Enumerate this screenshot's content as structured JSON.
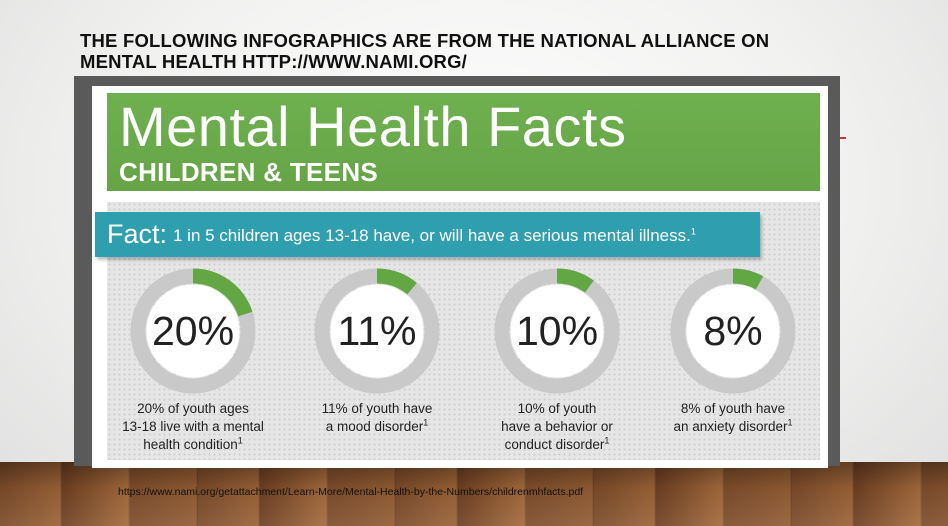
{
  "slide": {
    "heading_line1": "THE FOLLOWING INFOGRAPHICS ARE FROM THE NATIONAL ALLIANCE ON",
    "heading_line2": "MENTAL HEALTH  HTTP://WWW.NAMI.ORG/",
    "source_url": "https://www.nami.org/getattachment/Learn-More/Mental-Health-by-the-Numbers/childrenmhfacts.pdf"
  },
  "infographic": {
    "title": "Mental Health Facts",
    "subtitle": "CHILDREN & TEENS",
    "fact_label": "Fact:",
    "fact_text": "1 in 5 children ages 13-18 have, or will have a serious mental illness.",
    "fact_footnote": "1",
    "stats": [
      {
        "value_label": "20%",
        "fraction": 0.2,
        "line1": "20% of youth ages",
        "line2": "13-18 live with a mental",
        "line3": "health condition",
        "footnote": "1"
      },
      {
        "value_label": "11%",
        "fraction": 0.11,
        "line1": "11% of youth have",
        "line2": "a mood disorder",
        "line3": "",
        "footnote": "1"
      },
      {
        "value_label": "10%",
        "fraction": 0.1,
        "line1": "10% of youth",
        "line2": "have a behavior or",
        "line3": "conduct disorder",
        "footnote": "1"
      },
      {
        "value_label": "8%",
        "fraction": 0.08,
        "line1": "8% of youth have",
        "line2": "an anxiety disorder",
        "line3": "",
        "footnote": "1"
      }
    ]
  },
  "colors": {
    "green": "#6aa84f",
    "teal": "#2f9fb0",
    "ring_gray": "#c9c9c9",
    "ring_green": "#62a744"
  }
}
